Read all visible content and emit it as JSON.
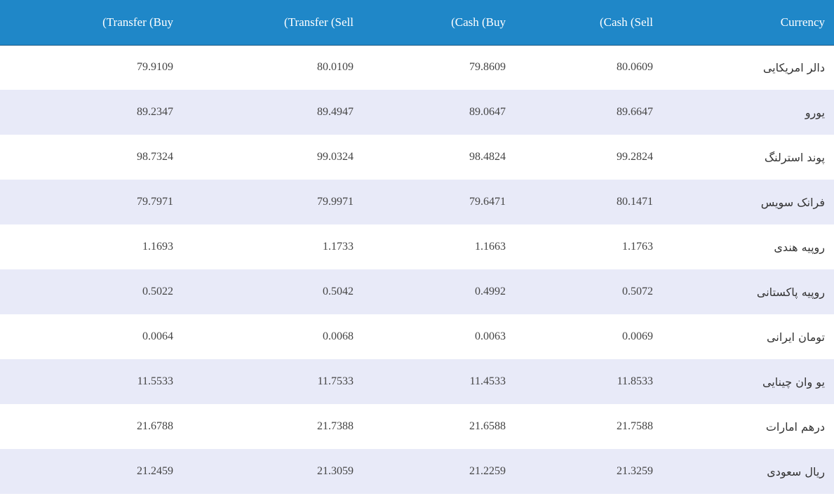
{
  "headers": {
    "transfer_buy": "(Transfer (Buy",
    "transfer_sell": "(Transfer (Sell",
    "cash_buy": "(Cash (Buy",
    "cash_sell": "(Cash (Sell",
    "currency": "Currency"
  },
  "rows": [
    {
      "transfer_buy": "79.9109",
      "transfer_sell": "80.0109",
      "cash_buy": "79.8609",
      "cash_sell": "80.0609",
      "currency": "دالر امریکایی"
    },
    {
      "transfer_buy": "89.2347",
      "transfer_sell": "89.4947",
      "cash_buy": "89.0647",
      "cash_sell": "89.6647",
      "currency": "یورو"
    },
    {
      "transfer_buy": "98.7324",
      "transfer_sell": "99.0324",
      "cash_buy": "98.4824",
      "cash_sell": "99.2824",
      "currency": "پوند استرلنگ"
    },
    {
      "transfer_buy": "79.7971",
      "transfer_sell": "79.9971",
      "cash_buy": "79.6471",
      "cash_sell": "80.1471",
      "currency": "فرانک سویس"
    },
    {
      "transfer_buy": "1.1693",
      "transfer_sell": "1.1733",
      "cash_buy": "1.1663",
      "cash_sell": "1.1763",
      "currency": "روپیه هندی"
    },
    {
      "transfer_buy": "0.5022",
      "transfer_sell": "0.5042",
      "cash_buy": "0.4992",
      "cash_sell": "0.5072",
      "currency": "روپیه پاکستانی"
    },
    {
      "transfer_buy": "0.0064",
      "transfer_sell": "0.0068",
      "cash_buy": "0.0063",
      "cash_sell": "0.0069",
      "currency": "تومان ایرانی"
    },
    {
      "transfer_buy": "11.5533",
      "transfer_sell": "11.7533",
      "cash_buy": "11.4533",
      "cash_sell": "11.8533",
      "currency": "یو وان چینایی"
    },
    {
      "transfer_buy": "21.6788",
      "transfer_sell": "21.7388",
      "cash_buy": "21.6588",
      "cash_sell": "21.7588",
      "currency": "درهم امارات"
    },
    {
      "transfer_buy": "21.2459",
      "transfer_sell": "21.3059",
      "cash_buy": "21.2259",
      "cash_sell": "21.3259",
      "currency": "ریال سعودی"
    }
  ],
  "colors": {
    "header_background": "#1f87c8",
    "header_text": "#ffffff",
    "striped_row": "#e8eaf8",
    "cell_text": "#444444"
  }
}
